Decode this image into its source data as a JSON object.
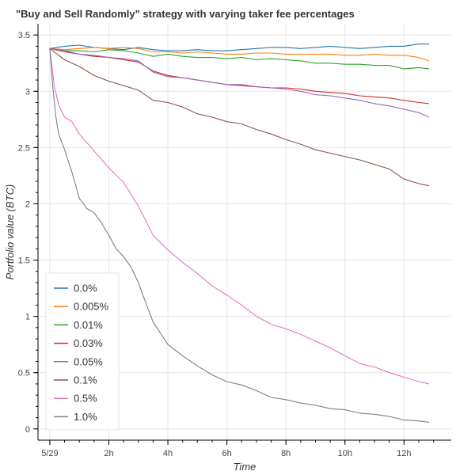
{
  "chart_data": {
    "type": "line",
    "title": "\"Buy and Sell Randomly\" strategy with varying taker fee percentages",
    "xlabel": "Time",
    "ylabel": "Portfolio value (BTC)",
    "x_ticks": [
      "5/29",
      "2h",
      "4h",
      "6h",
      "8h",
      "10h",
      "12h"
    ],
    "x_tick_hours": [
      0,
      2,
      4,
      6,
      8,
      10,
      12
    ],
    "xlim_hours": [
      -0.4,
      13.6
    ],
    "ylim": [
      -0.1,
      3.6
    ],
    "y_ticks": [
      0,
      0.5,
      1,
      1.5,
      2,
      2.5,
      3,
      3.5
    ],
    "y_tick_labels": [
      "0",
      "0.5",
      "1",
      "1.5",
      "2",
      "2.5",
      "3",
      "3.5"
    ],
    "grid": true,
    "legend_position": "bottom-left",
    "series": [
      {
        "name": "0.0%",
        "color": "#1f77b4",
        "x": [
          0,
          0.5,
          1,
          1.5,
          2,
          2.5,
          3,
          3.5,
          4,
          4.5,
          5,
          5.5,
          6,
          6.5,
          7,
          7.5,
          8,
          8.5,
          9,
          9.5,
          10,
          10.5,
          11,
          11.5,
          12,
          12.5,
          12.85
        ],
        "y": [
          3.38,
          3.4,
          3.41,
          3.39,
          3.38,
          3.37,
          3.39,
          3.37,
          3.36,
          3.36,
          3.37,
          3.36,
          3.36,
          3.37,
          3.38,
          3.39,
          3.39,
          3.38,
          3.39,
          3.4,
          3.39,
          3.38,
          3.39,
          3.4,
          3.4,
          3.42,
          3.42
        ]
      },
      {
        "name": "0.005%",
        "color": "#ff7f0e",
        "x": [
          0,
          0.5,
          1,
          1.5,
          2,
          2.5,
          3,
          3.5,
          4,
          4.5,
          5,
          5.5,
          6,
          6.5,
          7,
          7.5,
          8,
          8.5,
          9,
          9.5,
          10,
          10.5,
          11,
          11.5,
          12,
          12.5,
          12.85
        ],
        "y": [
          3.38,
          3.37,
          3.38,
          3.39,
          3.38,
          3.39,
          3.38,
          3.35,
          3.35,
          3.34,
          3.35,
          3.34,
          3.33,
          3.33,
          3.34,
          3.34,
          3.33,
          3.33,
          3.33,
          3.33,
          3.32,
          3.32,
          3.33,
          3.32,
          3.32,
          3.3,
          3.27
        ]
      },
      {
        "name": "0.01%",
        "color": "#2ca02c",
        "x": [
          0,
          0.5,
          1,
          1.5,
          2,
          2.5,
          3,
          3.5,
          4,
          4.5,
          5,
          5.5,
          6,
          6.5,
          7,
          7.5,
          8,
          8.5,
          9,
          9.5,
          10,
          10.5,
          11,
          11.5,
          12,
          12.5,
          12.85
        ],
        "y": [
          3.38,
          3.36,
          3.36,
          3.35,
          3.37,
          3.36,
          3.34,
          3.31,
          3.33,
          3.31,
          3.3,
          3.3,
          3.29,
          3.3,
          3.28,
          3.29,
          3.28,
          3.27,
          3.25,
          3.25,
          3.24,
          3.24,
          3.23,
          3.23,
          3.2,
          3.21,
          3.2
        ]
      },
      {
        "name": "0.03%",
        "color": "#d62728",
        "x": [
          0,
          0.5,
          1,
          1.5,
          2,
          2.5,
          3,
          3.5,
          4,
          4.5,
          5,
          5.5,
          6,
          6.5,
          7,
          7.5,
          8,
          8.5,
          9,
          9.5,
          10,
          10.5,
          11,
          11.5,
          12,
          12.5,
          12.85
        ],
        "y": [
          3.38,
          3.35,
          3.33,
          3.31,
          3.3,
          3.28,
          3.26,
          3.18,
          3.14,
          3.12,
          3.1,
          3.08,
          3.06,
          3.05,
          3.04,
          3.03,
          3.03,
          3.02,
          3.0,
          2.99,
          2.98,
          2.96,
          2.95,
          2.94,
          2.92,
          2.9,
          2.89
        ]
      },
      {
        "name": "0.05%",
        "color": "#9467bd",
        "x": [
          0,
          0.5,
          1,
          1.5,
          2,
          2.5,
          3,
          3.5,
          4,
          4.5,
          5,
          5.5,
          6,
          6.5,
          7,
          7.5,
          8,
          8.5,
          9,
          9.5,
          10,
          10.5,
          11,
          11.5,
          12,
          12.5,
          12.85
        ],
        "y": [
          3.38,
          3.36,
          3.33,
          3.32,
          3.3,
          3.29,
          3.27,
          3.17,
          3.13,
          3.12,
          3.1,
          3.08,
          3.06,
          3.06,
          3.04,
          3.03,
          3.02,
          3.0,
          2.97,
          2.96,
          2.94,
          2.92,
          2.89,
          2.87,
          2.84,
          2.81,
          2.77
        ]
      },
      {
        "name": "0.1%",
        "color": "#8c564b",
        "x": [
          0,
          0.5,
          1,
          1.5,
          2,
          2.5,
          3,
          3.5,
          4,
          4.5,
          5,
          5.5,
          6,
          6.5,
          7,
          7.5,
          8,
          8.5,
          9,
          9.5,
          10,
          10.5,
          11,
          11.5,
          12,
          12.5,
          12.85
        ],
        "y": [
          3.38,
          3.28,
          3.22,
          3.14,
          3.09,
          3.05,
          3.01,
          2.92,
          2.9,
          2.86,
          2.8,
          2.77,
          2.73,
          2.71,
          2.66,
          2.62,
          2.57,
          2.53,
          2.48,
          2.45,
          2.42,
          2.39,
          2.35,
          2.31,
          2.22,
          2.18,
          2.16
        ]
      },
      {
        "name": "0.5%",
        "color": "#e377c2",
        "x": [
          0,
          0.15,
          0.3,
          0.5,
          0.75,
          1,
          1.5,
          2,
          2.5,
          3,
          3.25,
          3.5,
          4,
          4.5,
          5,
          5.5,
          6,
          6.5,
          7,
          7.5,
          8,
          8.5,
          9,
          9.5,
          10,
          10.5,
          11,
          11.5,
          12,
          12.5,
          12.85
        ],
        "y": [
          3.38,
          3.05,
          2.88,
          2.77,
          2.73,
          2.62,
          2.47,
          2.32,
          2.19,
          1.98,
          1.85,
          1.72,
          1.59,
          1.48,
          1.38,
          1.27,
          1.19,
          1.1,
          1.0,
          0.93,
          0.89,
          0.84,
          0.78,
          0.72,
          0.65,
          0.58,
          0.55,
          0.5,
          0.46,
          0.42,
          0.4
        ]
      },
      {
        "name": "1.0%",
        "color": "#7f7f7f",
        "x": [
          0,
          0.1,
          0.2,
          0.3,
          0.5,
          0.75,
          1,
          1.25,
          1.5,
          1.75,
          2,
          2.25,
          2.5,
          2.75,
          3,
          3.25,
          3.5,
          4,
          4.5,
          5,
          5.5,
          6,
          6.5,
          7,
          7.5,
          8,
          8.5,
          9,
          9.5,
          10,
          10.5,
          11,
          11.5,
          12,
          12.5,
          12.85
        ],
        "y": [
          3.38,
          3.05,
          2.78,
          2.62,
          2.48,
          2.28,
          2.05,
          1.96,
          1.92,
          1.83,
          1.72,
          1.6,
          1.53,
          1.44,
          1.3,
          1.12,
          0.95,
          0.75,
          0.65,
          0.56,
          0.48,
          0.42,
          0.39,
          0.34,
          0.28,
          0.26,
          0.23,
          0.21,
          0.18,
          0.17,
          0.14,
          0.13,
          0.11,
          0.08,
          0.07,
          0.06
        ]
      }
    ]
  }
}
